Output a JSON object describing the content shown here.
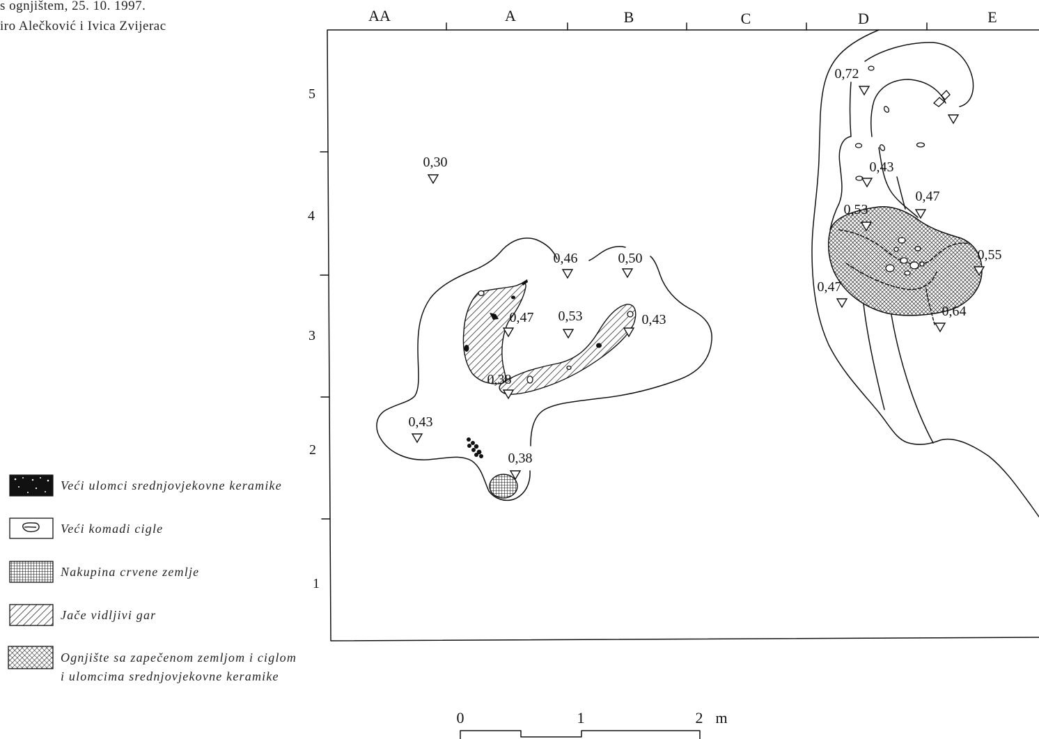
{
  "caption": {
    "line1": "s ognjištem, 25. 10. 1997.",
    "line2": "iro Alečković i Ivica Zvijerac"
  },
  "grid": {
    "columns": [
      "AA",
      "A",
      "B",
      "C",
      "D",
      "E"
    ],
    "rows": [
      "5",
      "4",
      "3",
      "2",
      "1"
    ]
  },
  "elevations": [
    "0,30",
    "0,46",
    "0,50",
    "0,47",
    "0,53",
    "0,43",
    "0,38",
    "0,43",
    "0,38",
    "0,72",
    "0,43",
    "0,47",
    "0,53",
    "0,55",
    "0,47",
    "0,64"
  ],
  "legend": [
    {
      "symbol": "black-fragment-icon",
      "label": "Veći ulomci srednjovjekovne keramike"
    },
    {
      "symbol": "brick-outline-icon",
      "label": "Veći komadi cigle"
    },
    {
      "symbol": "grid-pattern-icon",
      "label": "Nakupina crvene zemlje"
    },
    {
      "symbol": "diagonal-hatch-icon",
      "label": "Jače vidljivi gar"
    },
    {
      "symbol": "crosshatch-icon",
      "label_lines": [
        "Ognjište sa zapečenom zemljom i ciglom",
        "i ulomcima srednjovjekovne keramike"
      ]
    }
  ],
  "scale": {
    "ticks": [
      "0",
      "1",
      "2"
    ],
    "unit": "m"
  }
}
